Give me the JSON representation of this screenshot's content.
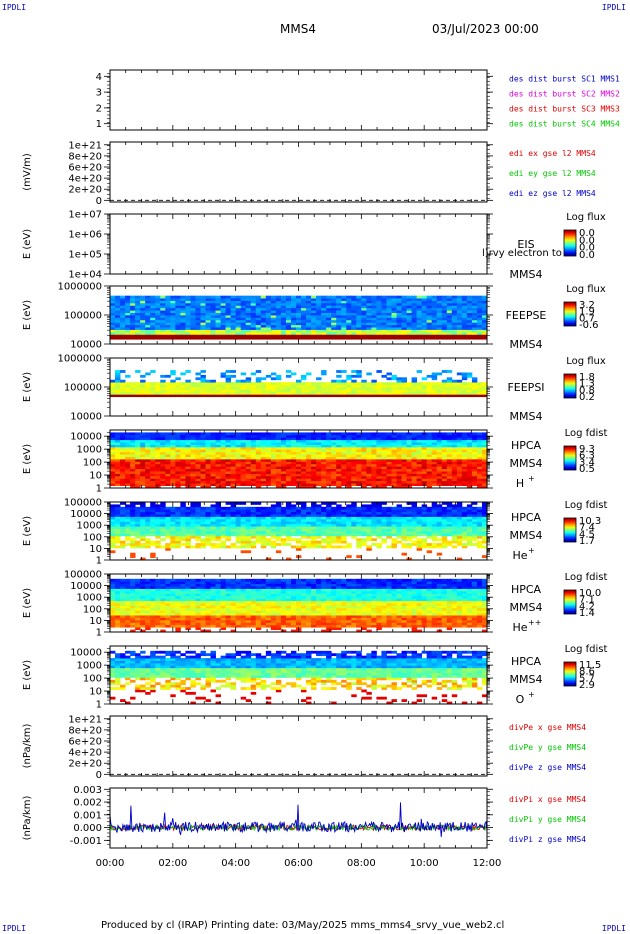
{
  "header": {
    "corner_left": "IPDLI",
    "corner_right": "IPDLI",
    "spacecraft": "MMS4",
    "datetime": "03/Jul/2023 00:00"
  },
  "footer": {
    "corner_left": "IPDLI",
    "corner_right": "IPDLI",
    "credit": "Produced by cl (IRAP)   Printing date: 03/May/2025   mms_mms4_srvy_vue_web2.cl"
  },
  "colors": {
    "mms1": "#0000c8",
    "mms2": "#e000e0",
    "mms3": "#e00000",
    "mms4": "#00c800",
    "red": "#e00000",
    "green": "#00c800",
    "blue": "#0000c8"
  },
  "chart_data": [
    {
      "type": "line",
      "panel": "des dist burst",
      "ylabel": "",
      "yticks": [
        "1",
        "2",
        "3",
        "4"
      ],
      "ylim": [
        0.6,
        4.4
      ],
      "legend": [
        {
          "label": "des dist burst SC1 MMS1",
          "color": "mms1"
        },
        {
          "label": "des dist burst SC2 MMS2",
          "color": "mms2"
        },
        {
          "label": "des dist burst SC3 MMS3",
          "color": "mms3"
        },
        {
          "label": "des dist burst SC4 MMS4",
          "color": "mms4"
        }
      ],
      "series": []
    },
    {
      "type": "line",
      "panel": "edi e gse",
      "ylabel": "(mV/m)",
      "yticks": [
        "0",
        "2e+20",
        "4e+20",
        "6e+20",
        "8e+20",
        "1e+21"
      ],
      "ylim": [
        -3e+19,
        1.05e+21
      ],
      "zero_line": "dashed",
      "legend": [
        {
          "label": "edi ex gse l2 MMS4",
          "color": "red"
        },
        {
          "label": "edi ey gse l2 MMS4",
          "color": "green"
        },
        {
          "label": "edi ez gse l2 MMS4",
          "color": "blue"
        }
      ],
      "series": []
    },
    {
      "type": "heatmap",
      "panel": "EIS",
      "ylabel": "E (eV)",
      "yscale": "log",
      "yticks": [
        "1e+04",
        "1e+05",
        "1e+06",
        "1e+07"
      ],
      "ylim": [
        10000,
        10000000
      ],
      "instrument": "EIS",
      "spacecraft": "MMS4",
      "overlay_text": "l)rvy electron to",
      "colorbar": {
        "title": "Log flux",
        "ticks": [
          "0.0",
          "0.0",
          "0.0",
          "0.0"
        ]
      }
    },
    {
      "type": "heatmap",
      "panel": "FEEPSE",
      "ylabel": "E (eV)",
      "yscale": "log",
      "yticks": [
        "10000",
        "100000",
        "1000000"
      ],
      "ylim": [
        10000,
        1000000
      ],
      "instrument": "FEEPSE",
      "spacecraft": "MMS4",
      "colorbar": {
        "title": "Log flux",
        "ticks": [
          "3.2",
          "1.9",
          "0.7",
          "-0.6"
        ]
      }
    },
    {
      "type": "heatmap",
      "panel": "FEEPSI",
      "ylabel": "E (eV)",
      "yscale": "log",
      "yticks": [
        "10000",
        "100000",
        "1000000"
      ],
      "ylim": [
        10000,
        1000000
      ],
      "instrument": "FEEPSI",
      "spacecraft": "MMS4",
      "colorbar": {
        "title": "Log flux",
        "ticks": [
          "1.8",
          "1.3",
          "0.8",
          "0.2"
        ]
      }
    },
    {
      "type": "heatmap",
      "panel": "HPCA H+",
      "ylabel": "E (eV)",
      "yscale": "log",
      "yticks": [
        "1",
        "10",
        "100",
        "1000",
        "10000"
      ],
      "ylim": [
        1,
        30000
      ],
      "instrument": "HPCA",
      "spacecraft": "MMS4",
      "species": "H",
      "charge": "+",
      "colorbar": {
        "title": "Log fdist",
        "ticks": [
          "9.3",
          "6.3",
          "3.4",
          "0.5"
        ]
      }
    },
    {
      "type": "heatmap",
      "panel": "HPCA He+",
      "ylabel": "E (eV)",
      "yscale": "log",
      "yticks": [
        "1",
        "10",
        "100",
        "1000",
        "10000",
        "100000"
      ],
      "ylim": [
        1,
        100000
      ],
      "instrument": "HPCA",
      "spacecraft": "MMS4",
      "species": "He",
      "charge": "+",
      "colorbar": {
        "title": "Log fdist",
        "ticks": [
          "10.3",
          "7.4",
          "4.5",
          "1.7"
        ]
      }
    },
    {
      "type": "heatmap",
      "panel": "HPCA He++",
      "ylabel": "E (eV)",
      "yscale": "log",
      "yticks": [
        "1",
        "10",
        "100",
        "1000",
        "10000",
        "100000"
      ],
      "ylim": [
        1,
        100000
      ],
      "instrument": "HPCA",
      "spacecraft": "MMS4",
      "species": "He",
      "charge": "++",
      "colorbar": {
        "title": "Log fdist",
        "ticks": [
          "10.0",
          "7.1",
          "4.2",
          "1.4"
        ]
      }
    },
    {
      "type": "heatmap",
      "panel": "HPCA O+",
      "ylabel": "E (eV)",
      "yscale": "log",
      "yticks": [
        "1",
        "10",
        "100",
        "1000",
        "10000"
      ],
      "ylim": [
        1,
        30000
      ],
      "instrument": "HPCA",
      "spacecraft": "MMS4",
      "species": "O",
      "charge": "+",
      "colorbar": {
        "title": "Log fdist",
        "ticks": [
          "11.5",
          "8.6",
          "5.7",
          "2.9"
        ]
      }
    },
    {
      "type": "line",
      "panel": "divPe gse",
      "ylabel": "(nPa/km)",
      "yticks": [
        "0",
        "2e+20",
        "4e+20",
        "6e+20",
        "8e+20",
        "1e+21"
      ],
      "ylim": [
        -3e+19,
        1.05e+21
      ],
      "zero_line": "dashed",
      "legend": [
        {
          "label": "divPe x gse MMS4",
          "color": "red"
        },
        {
          "label": "divPe y gse MMS4",
          "color": "green"
        },
        {
          "label": "divPe z gse MMS4",
          "color": "blue"
        }
      ],
      "series": []
    },
    {
      "type": "line",
      "panel": "divPi gse",
      "ylabel": "(nPa/km)",
      "yticks": [
        "-0.001",
        "0.000",
        "0.001",
        "0.002",
        "0.003"
      ],
      "ylim": [
        -0.0016,
        0.0031
      ],
      "legend": [
        {
          "label": "divPi x gse MMS4",
          "color": "red"
        },
        {
          "label": "divPi y gse MMS4",
          "color": "green"
        },
        {
          "label": "divPi z gse MMS4",
          "color": "blue"
        }
      ],
      "series": [
        {
          "name": "divPi x gse MMS4",
          "color": "red",
          "mean": 0.0,
          "noise": 0.0002
        },
        {
          "name": "divPi y gse MMS4",
          "color": "green",
          "mean": 0.0,
          "noise": 0.0002
        },
        {
          "name": "divPi z gse MMS4",
          "color": "blue",
          "mean": 5e-05,
          "noise": 0.0004
        }
      ]
    }
  ],
  "time_axis": {
    "labels": [
      "00:00",
      "02:00",
      "04:00",
      "06:00",
      "08:00",
      "10:00",
      "12:00"
    ],
    "start_hours": 0,
    "end_hours": 12
  }
}
